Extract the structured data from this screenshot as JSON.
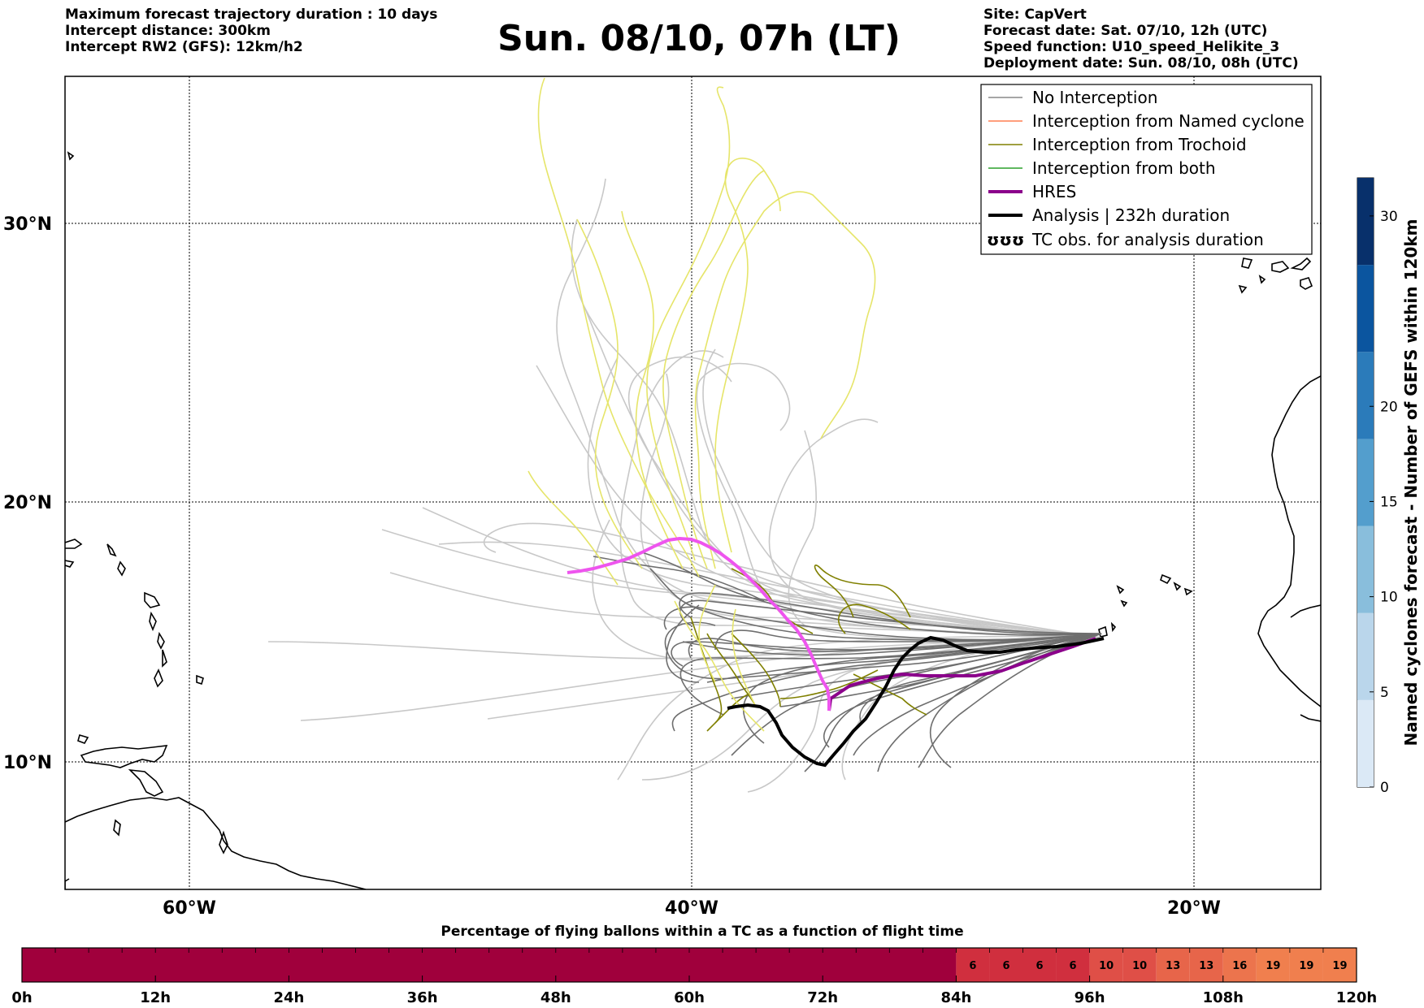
{
  "header": {
    "left_lines": [
      "Maximum forecast trajectory duration : 10 days",
      "Intercept distance: 300km",
      "Intercept RW2 (GFS):  12km/h2"
    ],
    "title": "Sun. 08/10, 07h (LT)",
    "right_lines": [
      "Site: CapVert",
      "Forecast date: Sat. 07/10, 12h (UTC)",
      "Speed function: U10_speed_Helikite_3",
      "Deployment date: Sun. 08/10, 08h (UTC)"
    ]
  },
  "map": {
    "lat_labels": [
      "30°N",
      "20°N",
      "10°N"
    ],
    "lat_values": [
      30,
      20,
      10
    ],
    "lon_labels": [
      "60°W",
      "40°W",
      "20°W"
    ],
    "lon_values": [
      -60,
      -40,
      -20
    ]
  },
  "legend": {
    "items": [
      {
        "label": "No Interception",
        "color": "#888888"
      },
      {
        "label": "Interception from Named cyclone",
        "color": "#ff7f50"
      },
      {
        "label": "Interception from Trochoid",
        "color": "#808000"
      },
      {
        "label": "Interception from both",
        "color": "#2ca02c"
      },
      {
        "label": "HRES",
        "color": "#8b008b"
      },
      {
        "label": "Analysis | 232h duration",
        "color": "#000000"
      },
      {
        "label": "TC obs. for analysis duration",
        "symbol": "ʊʊʊ"
      }
    ]
  },
  "colorbar": {
    "title": "Named cyclones forecast - Number of GEFS within 120km",
    "ticks": [
      "0",
      "5",
      "10",
      "15",
      "20",
      "30"
    ],
    "tick_values": [
      0,
      5,
      10,
      15,
      20,
      30
    ],
    "colors": [
      "#dbe9f6",
      "#bad6eb",
      "#89bedc",
      "#539ecd",
      "#2b7bba",
      "#0b559f",
      "#08306b"
    ]
  },
  "bottom_bar": {
    "title": "Percentage of flying ballons within a TC as a function of flight time",
    "ticks": [
      "0h",
      "12h",
      "24h",
      "36h",
      "48h",
      "60h",
      "72h",
      "84h",
      "96h",
      "108h",
      "120h"
    ],
    "cells_start_hour": 84,
    "cell_hours": 3,
    "cell_values": [
      "6",
      "6",
      "6",
      "6",
      "10",
      "10",
      "13",
      "13",
      "16",
      "19",
      "19",
      "19"
    ],
    "cell_colors": [
      "#d02f3e",
      "#d02f3e",
      "#d02f3e",
      "#d02f3e",
      "#df4f47",
      "#df4f47",
      "#e7654a",
      "#e7654a",
      "#ec744d",
      "#f07f4e",
      "#f07f4e",
      "#f07f4e"
    ],
    "base_color": "#a0003c"
  }
}
